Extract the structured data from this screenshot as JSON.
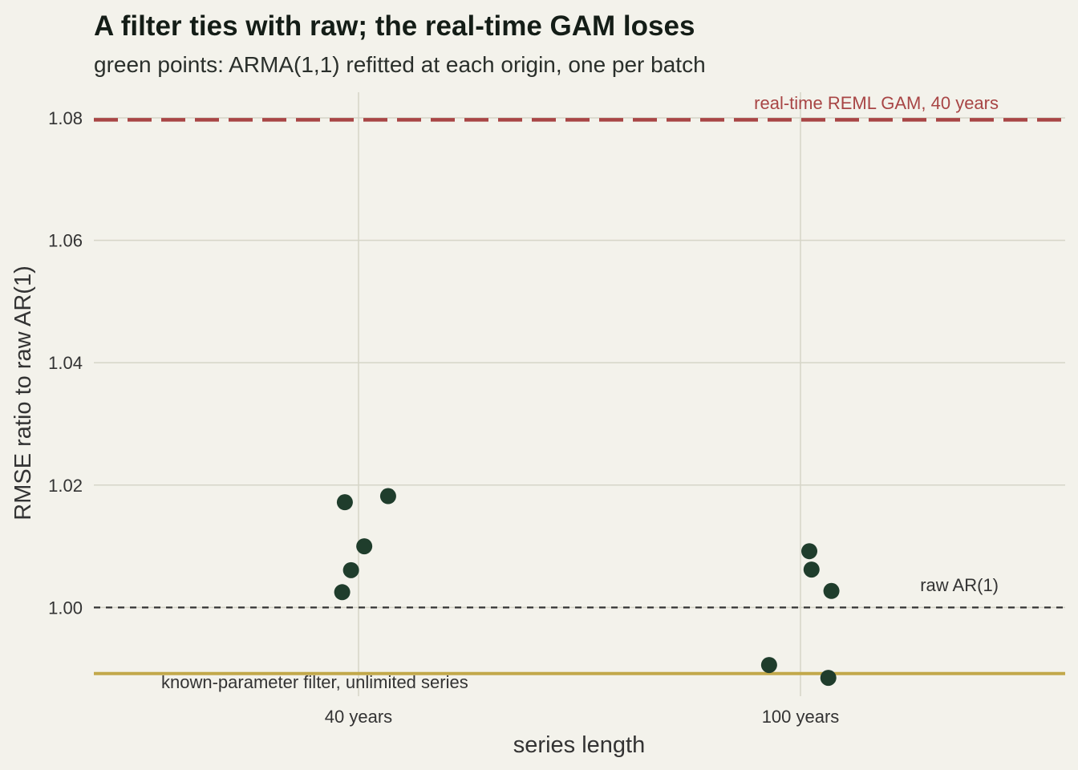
{
  "colors": {
    "points": "#1f3d2c",
    "gam_line": "#a84545",
    "filter_line": "#c2a84a",
    "raw_line": "#333333",
    "background": "#f3f2eb",
    "grid": "#d6d5c8"
  },
  "chart_data": {
    "type": "scatter",
    "title": "A filter ties with raw; the real-time GAM loses",
    "subtitle": "green points: ARMA(1,1) refitted at each origin, one per batch",
    "xlabel": "series length",
    "ylabel": "RMSE ratio to raw AR(1)",
    "categories": [
      "40 years",
      "100 years"
    ],
    "ylim": [
      0.9855,
      1.0842
    ],
    "yticks": [
      "1.00",
      "1.02",
      "1.04",
      "1.06",
      "1.08"
    ],
    "grid": true,
    "series": [
      {
        "points": [
          {
            "category": "40 years",
            "jitter": -0.037,
            "y": 1.0025
          },
          {
            "category": "40 years",
            "jitter": -0.017,
            "y": 1.0061
          },
          {
            "category": "40 years",
            "jitter": 0.013,
            "y": 1.01
          },
          {
            "category": "40 years",
            "jitter": -0.031,
            "y": 1.0172
          },
          {
            "category": "40 years",
            "jitter": 0.067,
            "y": 1.0182
          },
          {
            "category": "100 years",
            "jitter": -0.071,
            "y": 0.9906
          },
          {
            "category": "100 years",
            "jitter": 0.02,
            "y": 1.0092
          },
          {
            "category": "100 years",
            "jitter": 0.025,
            "y": 1.0062
          },
          {
            "category": "100 years",
            "jitter": 0.07,
            "y": 1.0027
          },
          {
            "category": "100 years",
            "jitter": 0.063,
            "y": 0.9885
          }
        ]
      }
    ],
    "reference_lines": [
      {
        "y": 1.0797,
        "style": "dashed",
        "label": "real-time REML GAM, 40 years"
      },
      {
        "y": 1.0,
        "style": "dotted",
        "label": "raw AR(1)"
      },
      {
        "y": 0.9892,
        "style": "solid",
        "label": "known-parameter filter, unlimited series"
      }
    ]
  }
}
